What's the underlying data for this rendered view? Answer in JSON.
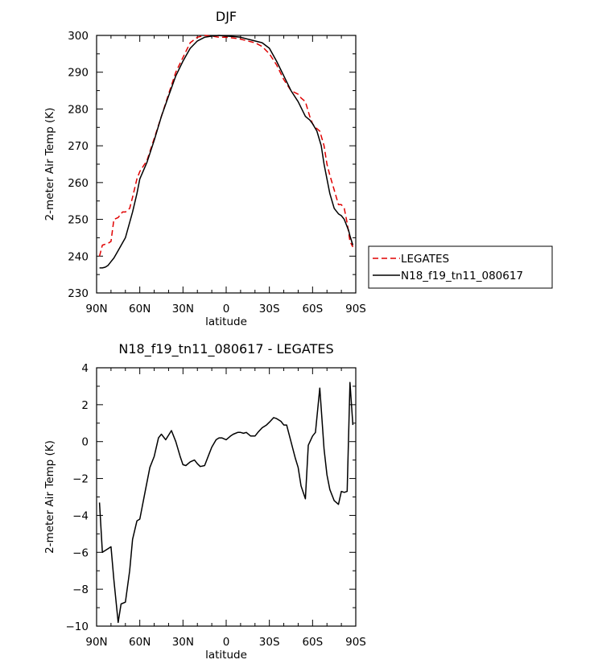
{
  "chart_data": [
    {
      "type": "line",
      "title": "DJF",
      "xlabel": "latitude",
      "ylabel": "2-meter Air Temp (K)",
      "xlim": [
        90,
        -90
      ],
      "ylim": [
        230,
        300
      ],
      "xticks": [
        90,
        60,
        30,
        0,
        -30,
        -60,
        -90
      ],
      "xtick_labels": [
        "90N",
        "60N",
        "30N",
        "0",
        "30S",
        "60S",
        "90S"
      ],
      "yticks": [
        230,
        240,
        250,
        260,
        270,
        280,
        290,
        300
      ],
      "ytick_labels": [
        "230",
        "240",
        "250",
        "260",
        "270",
        "280",
        "290",
        "300"
      ],
      "legend": "outside-right",
      "series": [
        {
          "name": "LEGATES",
          "color": "#e00000",
          "dash": "dashed",
          "x": [
            88,
            86,
            82,
            80,
            78,
            75,
            72,
            70,
            67,
            65,
            62,
            60,
            55,
            50,
            45,
            40,
            35,
            30,
            25,
            20,
            15,
            10,
            5,
            0,
            -5,
            -10,
            -15,
            -20,
            -25,
            -30,
            -35,
            -40,
            -45,
            -50,
            -52,
            -55,
            -58,
            -60,
            -62,
            -65,
            -68,
            -70,
            -72,
            -75,
            -78,
            -80,
            -82,
            -84,
            -86,
            -88
          ],
          "y": [
            240,
            243,
            243.5,
            244,
            250,
            250.5,
            252,
            252,
            253,
            256,
            261,
            263,
            266,
            272,
            278,
            284,
            290,
            294,
            298,
            299.5,
            300,
            299.8,
            299.5,
            299.5,
            299.3,
            299,
            298.5,
            298,
            297,
            295,
            292,
            288,
            285,
            284,
            283,
            282,
            278,
            276,
            275,
            274,
            270,
            265,
            262,
            258,
            254,
            254,
            253,
            249,
            244,
            242.5
          ]
        },
        {
          "name": "N18_f19_tn11_080617",
          "color": "#000000",
          "dash": "solid",
          "x": [
            88,
            86,
            84,
            82,
            80,
            78,
            75,
            70,
            65,
            62,
            60,
            55,
            50,
            45,
            40,
            35,
            30,
            25,
            20,
            15,
            10,
            5,
            0,
            -5,
            -10,
            -15,
            -20,
            -25,
            -30,
            -35,
            -40,
            -45,
            -50,
            -55,
            -58,
            -60,
            -63,
            -66,
            -68,
            -70,
            -72,
            -75,
            -78,
            -80,
            -82,
            -85,
            -86,
            -88
          ],
          "y": [
            236.8,
            236.8,
            237,
            237.5,
            238.5,
            239.5,
            241.5,
            245,
            252,
            257,
            261,
            265.5,
            271.5,
            278,
            283.5,
            289,
            293,
            296.5,
            298.5,
            299.5,
            299.8,
            300,
            299.8,
            299.7,
            299.5,
            299,
            298.5,
            298,
            296.5,
            293,
            289,
            285,
            282,
            278,
            277,
            276,
            274,
            270,
            265,
            261,
            257,
            253,
            251.5,
            251,
            250,
            247,
            245.5,
            243
          ]
        }
      ]
    },
    {
      "type": "line",
      "title": "N18_f19_tn11_080617 - LEGATES",
      "xlabel": "latitude",
      "ylabel": "2-meter Air Temp (K)",
      "xlim": [
        90,
        -90
      ],
      "ylim": [
        -10,
        4
      ],
      "xticks": [
        90,
        60,
        30,
        0,
        -30,
        -60,
        -90
      ],
      "xtick_labels": [
        "90N",
        "60N",
        "30N",
        "0",
        "30S",
        "60S",
        "90S"
      ],
      "yticks": [
        -10,
        -8,
        -6,
        -4,
        -2,
        0,
        2,
        4
      ],
      "ytick_labels": [
        "−10",
        "−8",
        "−6",
        "−4",
        "−2",
        "0",
        "2",
        "4"
      ],
      "series": [
        {
          "color": "#000000",
          "dash": "solid",
          "x": [
            88,
            86,
            82,
            80,
            78,
            75,
            73,
            70,
            67,
            65,
            62,
            60,
            56,
            53,
            50,
            47,
            45,
            42,
            38,
            35,
            32,
            30,
            28,
            25,
            22,
            20,
            18,
            15,
            12,
            10,
            7,
            5,
            3,
            0,
            -3,
            -5,
            -8,
            -10,
            -12,
            -14,
            -17,
            -20,
            -22,
            -25,
            -28,
            -30,
            -33,
            -35,
            -38,
            -40,
            -42,
            -45,
            -48,
            -50,
            -52,
            -55,
            -57,
            -60,
            -62,
            -65,
            -68,
            -70,
            -72,
            -75,
            -78,
            -80,
            -82,
            -84,
            -86,
            -88
          ],
          "y": [
            -3.3,
            -6,
            -5.8,
            -5.7,
            -7.5,
            -9.8,
            -8.8,
            -8.7,
            -7,
            -5.3,
            -4.3,
            -4.2,
            -2.6,
            -1.4,
            -0.8,
            0.2,
            0.4,
            0.1,
            0.6,
            0,
            -0.8,
            -1.25,
            -1.3,
            -1.1,
            -1,
            -1.2,
            -1.35,
            -1.3,
            -0.7,
            -0.3,
            0.1,
            0.2,
            0.2,
            0.1,
            0.3,
            0.4,
            0.5,
            0.5,
            0.45,
            0.5,
            0.3,
            0.3,
            0.5,
            0.75,
            0.9,
            1.05,
            1.3,
            1.25,
            1.1,
            0.9,
            0.9,
            0,
            -0.9,
            -1.4,
            -2.4,
            -3.1,
            -0.2,
            0.3,
            0.5,
            2.9,
            -0.4,
            -1.8,
            -2.6,
            -3.2,
            -3.4,
            -2.7,
            -2.75,
            -2.7,
            3.2,
            0.9
          ]
        }
      ]
    }
  ]
}
